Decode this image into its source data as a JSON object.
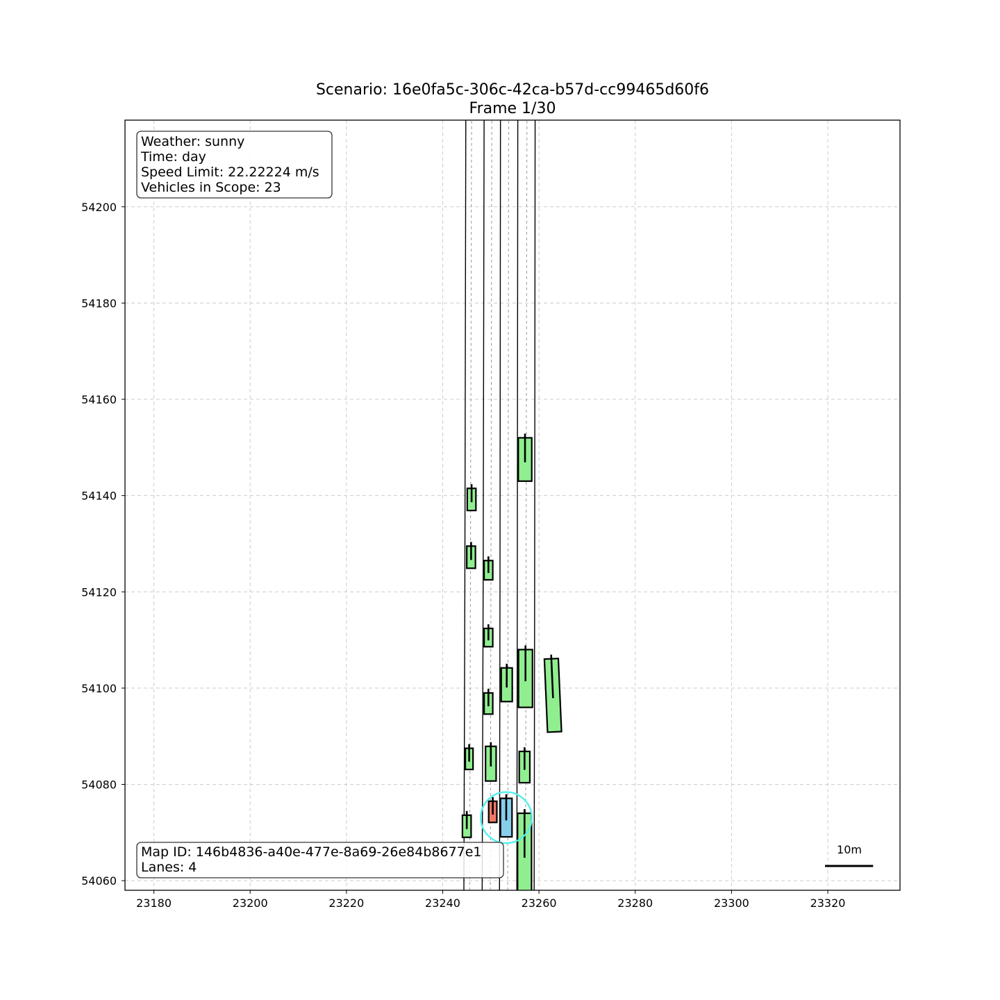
{
  "title": {
    "line1": "Scenario: 16e0fa5c-306c-42ca-b57d-cc99465d60f6",
    "line2": "Frame 1/30"
  },
  "info_box": {
    "weather": "Weather: sunny",
    "time": "Time: day",
    "speed_limit": "Speed Limit: 22.22224 m/s",
    "vehicles": "Vehicles in Scope: 23"
  },
  "map_box": {
    "map_id": "Map ID: 146b4836-a40e-477e-8a69-26e84b8677e1",
    "lanes": "Lanes: 4"
  },
  "scale_bar": {
    "label": "10m",
    "length_m": 10
  },
  "colors": {
    "vehicle": "#90ee90",
    "ego": "#87ceeb",
    "target": "#f07868",
    "ego_highlight": "#55eeee",
    "grid": "#cccccc",
    "lane_boundary": "#000000",
    "centerline": "#999999"
  },
  "chart_data": {
    "type": "map",
    "xlim": [
      23174,
      23335
    ],
    "ylim": [
      54058,
      54218
    ],
    "x_ticks": [
      23180,
      23200,
      23220,
      23240,
      23260,
      23280,
      23300,
      23320
    ],
    "y_ticks": [
      54060,
      54080,
      54100,
      54120,
      54140,
      54160,
      54180,
      54200
    ],
    "grid": true,
    "lane_boundaries": [
      [
        [
          23244.4,
          54058
        ],
        [
          23244.6,
          54120
        ],
        [
          23244.8,
          54218
        ]
      ],
      [
        [
          23248.2,
          54058
        ],
        [
          23248.4,
          54120
        ],
        [
          23248.6,
          54218
        ]
      ],
      [
        [
          23251.8,
          54058
        ],
        [
          23251.9,
          54120
        ],
        [
          23252.0,
          54218
        ]
      ],
      [
        [
          23255.4,
          54058
        ],
        [
          23255.5,
          54120
        ],
        [
          23255.6,
          54218
        ]
      ],
      [
        [
          23259.0,
          54058
        ],
        [
          23259.1,
          54120
        ],
        [
          23259.2,
          54218
        ]
      ]
    ],
    "lane_centerlines": [
      [
        [
          23245.6,
          54058
        ],
        [
          23246.0,
          54218
        ]
      ],
      [
        [
          23249.9,
          54058
        ],
        [
          23250.2,
          54218
        ]
      ],
      [
        [
          23253.5,
          54058
        ],
        [
          23253.7,
          54218
        ]
      ],
      [
        [
          23257.2,
          54058
        ],
        [
          23257.5,
          54218
        ]
      ]
    ],
    "vehicles": [
      {
        "x": 23246.0,
        "y": 54139.2,
        "length": 4.6,
        "width": 1.8,
        "heading_deg": 90,
        "role": "other"
      },
      {
        "x": 23245.9,
        "y": 54127.2,
        "length": 4.6,
        "width": 1.8,
        "heading_deg": 90,
        "role": "other"
      },
      {
        "x": 23249.5,
        "y": 54124.5,
        "length": 4.0,
        "width": 1.8,
        "heading_deg": 90,
        "role": "other"
      },
      {
        "x": 23249.5,
        "y": 54110.5,
        "length": 3.8,
        "width": 1.8,
        "heading_deg": 90,
        "role": "other"
      },
      {
        "x": 23257.1,
        "y": 54147.5,
        "length": 9.0,
        "width": 2.8,
        "heading_deg": 90,
        "role": "other"
      },
      {
        "x": 23253.3,
        "y": 54100.7,
        "length": 7.0,
        "width": 2.3,
        "heading_deg": 90,
        "role": "other"
      },
      {
        "x": 23257.2,
        "y": 54102.0,
        "length": 12.0,
        "width": 2.9,
        "heading_deg": 90,
        "role": "other"
      },
      {
        "x": 23262.9,
        "y": 54098.5,
        "length": 15.2,
        "width": 2.9,
        "heading_deg": 92.5,
        "role": "other"
      },
      {
        "x": 23249.5,
        "y": 54096.8,
        "length": 4.4,
        "width": 1.8,
        "heading_deg": 90,
        "role": "other"
      },
      {
        "x": 23245.5,
        "y": 54085.3,
        "length": 4.4,
        "width": 1.6,
        "heading_deg": 90,
        "role": "other"
      },
      {
        "x": 23250.0,
        "y": 54084.3,
        "length": 7.2,
        "width": 2.2,
        "heading_deg": 90,
        "role": "other"
      },
      {
        "x": 23257.0,
        "y": 54083.6,
        "length": 6.5,
        "width": 2.2,
        "heading_deg": 90,
        "role": "other"
      },
      {
        "x": 23245.0,
        "y": 54071.3,
        "length": 4.6,
        "width": 1.8,
        "heading_deg": 90,
        "role": "other"
      },
      {
        "x": 23257.0,
        "y": 54064.0,
        "length": 20.0,
        "width": 2.9,
        "heading_deg": 90,
        "role": "other"
      },
      {
        "x": 23250.4,
        "y": 54074.3,
        "length": 4.4,
        "width": 1.7,
        "heading_deg": 90,
        "role": "target"
      },
      {
        "x": 23253.2,
        "y": 54073.1,
        "length": 8.0,
        "width": 2.4,
        "heading_deg": 90,
        "role": "ego"
      }
    ],
    "ego_highlight_circle": {
      "x": 23253.2,
      "y": 54073.1,
      "radius": 5.3
    }
  }
}
